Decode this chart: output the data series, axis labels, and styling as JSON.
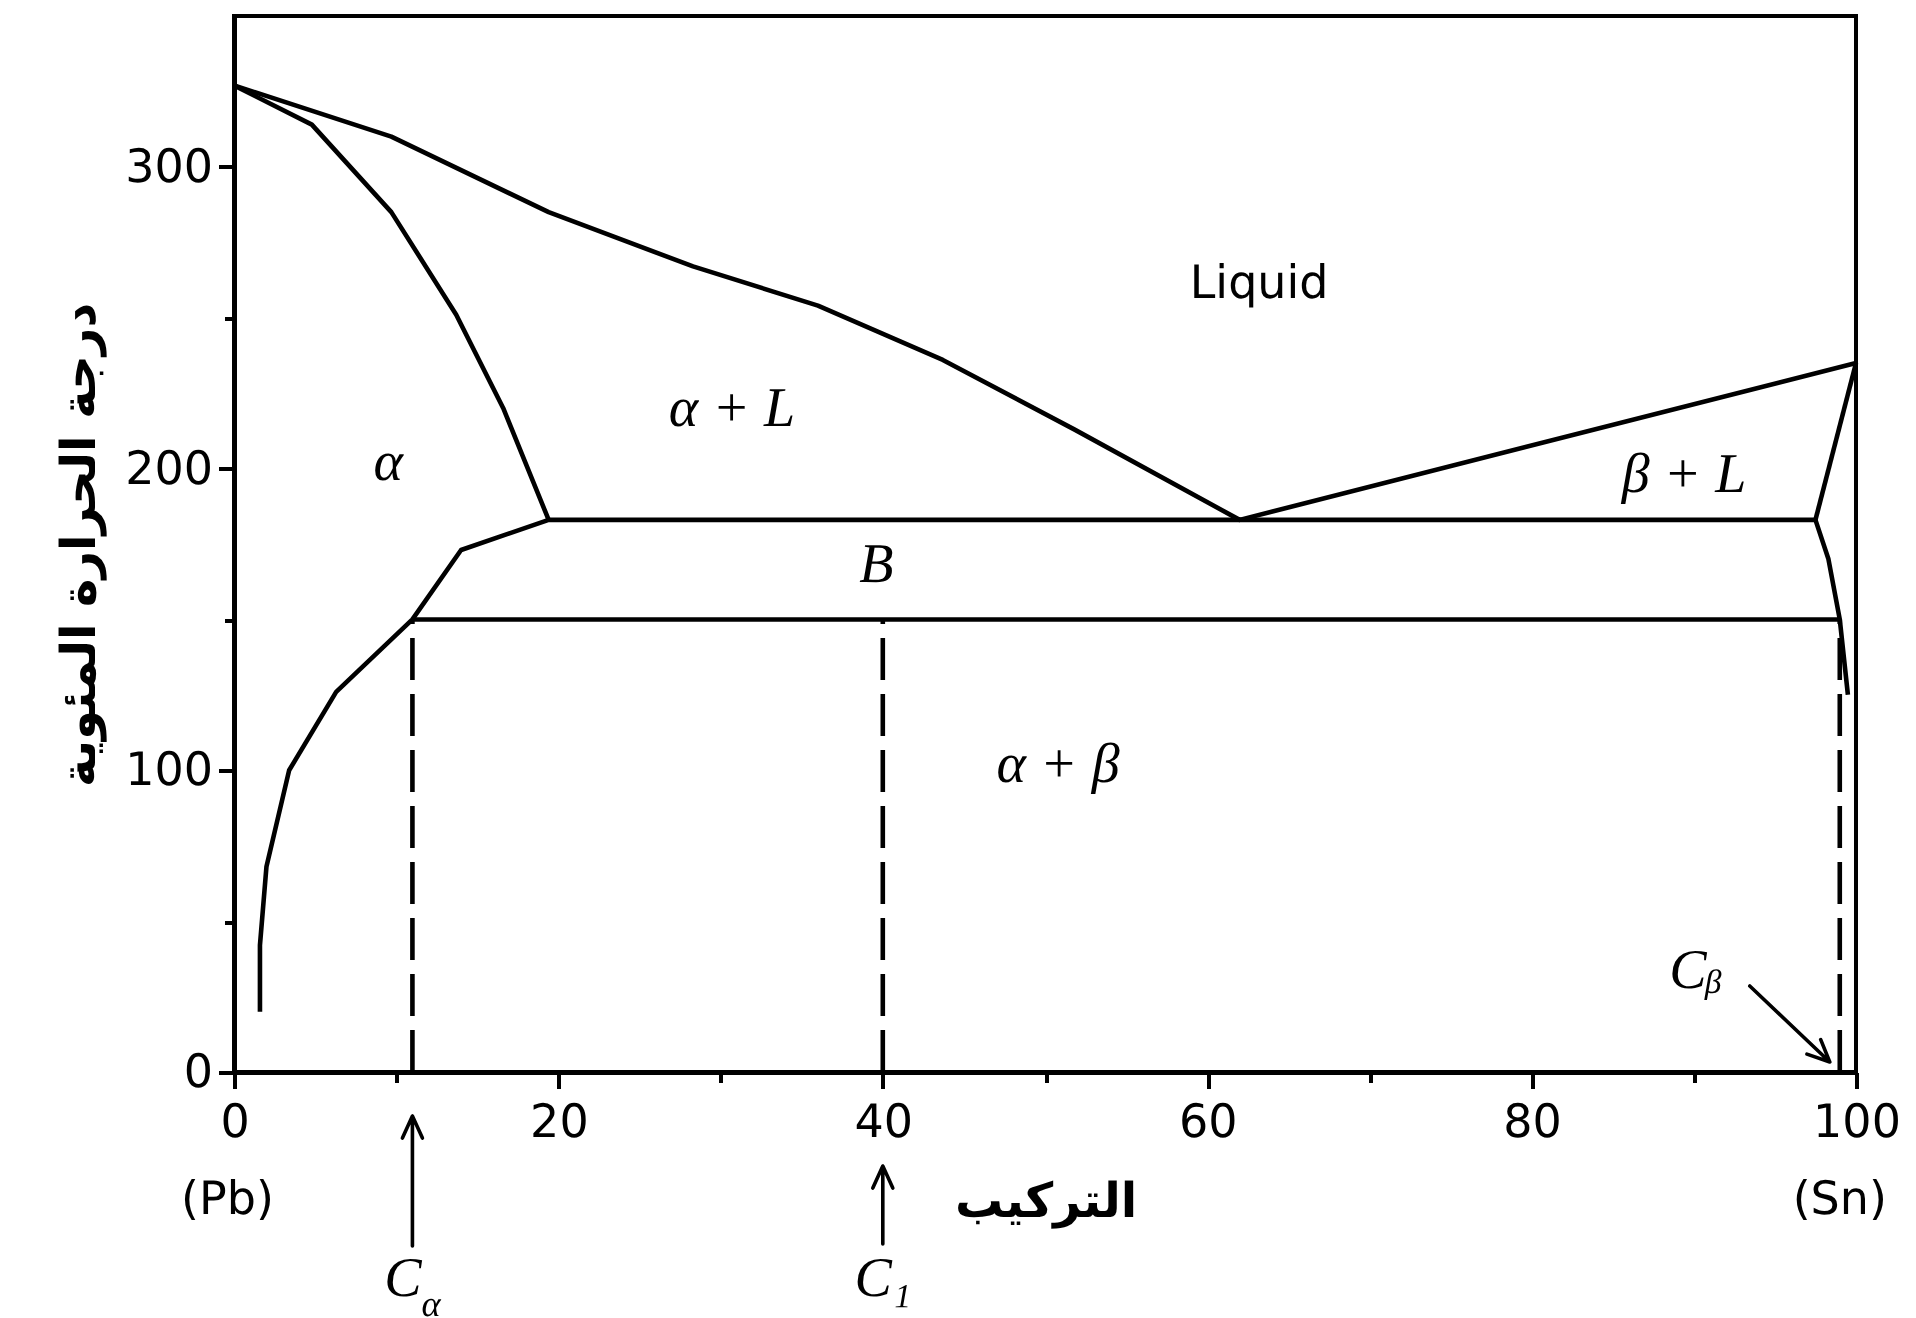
{
  "chart_data": {
    "type": "line",
    "xlabel": "التركيب",
    "ylabel": "درجة الحرارة المئوية",
    "xlim": [
      0,
      100
    ],
    "ylim": [
      0,
      350
    ],
    "xticks": [
      0,
      {
        "value": 10,
        "label": null
      },
      20,
      {
        "value": 30,
        "label": null
      },
      40,
      {
        "value": 50,
        "label": null
      },
      60,
      {
        "value": 70,
        "label": null
      },
      80,
      {
        "value": 90,
        "label": null
      },
      100
    ],
    "yticks": [
      0,
      {
        "value": 50,
        "label": null
      },
      100,
      {
        "value": 150,
        "label": null
      },
      200,
      {
        "value": 250,
        "label": null
      },
      300
    ],
    "grid": false,
    "line_style": "solid",
    "series": [
      {
        "color": "#000000",
        "x": [
          0,
          9.7,
          19.4,
          28.3,
          36,
          43.7,
          51.8,
          62,
          100
        ],
        "values": [
          327,
          310,
          285,
          267,
          254,
          236,
          213,
          183,
          235
        ]
      },
      {
        "color": "#000000",
        "x": [
          0,
          4.8,
          9.7,
          13.7,
          16.6,
          19.4
        ],
        "values": [
          327,
          314,
          285,
          251,
          220,
          183
        ]
      },
      {
        "color": "#000000",
        "x": [
          1.6,
          1.6,
          2,
          3.4,
          6.3,
          11,
          14,
          19.4,
          97.5,
          98.3,
          99,
          99.5
        ],
        "values": [
          20,
          42,
          68,
          100,
          126,
          150,
          173,
          183,
          183,
          170,
          150,
          125
        ]
      },
      {
        "color": "#000000",
        "x": [
          97.5,
          100
        ],
        "values": [
          183,
          235
        ]
      },
      {
        "color": "#000000",
        "x": [
          11,
          99
        ],
        "values": [
          150,
          150
        ]
      },
      {
        "color": "#000000",
        "line_style": "dashed",
        "x": [
          11,
          11
        ],
        "values": [
          0,
          150
        ]
      },
      {
        "color": "#000000",
        "line_style": "dashed",
        "x": [
          40,
          40
        ],
        "values": [
          0,
          150
        ]
      },
      {
        "color": "#000000",
        "line_style": "dashed",
        "x": [
          99,
          99
        ],
        "values": [
          0,
          150
        ]
      }
    ],
    "annotations": [
      "Liquid",
      "α + L",
      "α",
      "β + L",
      "B",
      "α + β",
      "C$_{α}$",
      "C₁",
      {
        "text": "Cᵦ",
        "x": 99,
        "y": 0
      },
      "(Pb)",
      "(Sn)"
    ]
  }
}
